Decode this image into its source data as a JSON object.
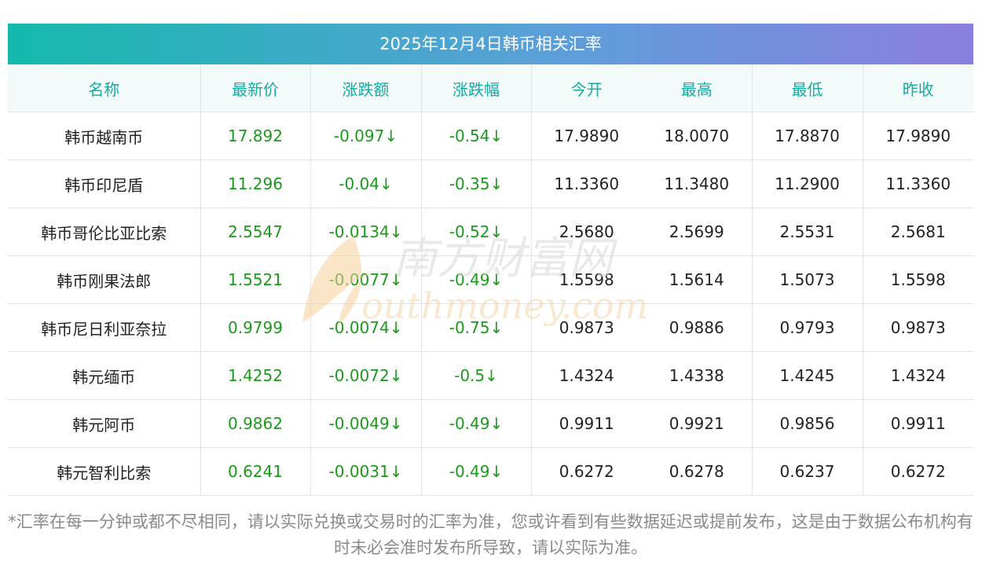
{
  "title": "2025年12月4日韩币相关汇率",
  "headers": [
    "名称",
    "最新价",
    "涨跌额",
    "涨跌幅",
    "今开",
    "最高",
    "最低",
    "昨收"
  ],
  "rows": [
    {
      "name": "韩币越南币",
      "latest": "17.892",
      "change": "-0.097↓",
      "pct": "-0.54↓",
      "open": "17.9890",
      "high": "18.0070",
      "low": "17.8870",
      "prev": "17.9890"
    },
    {
      "name": "韩币印尼盾",
      "latest": "11.296",
      "change": "-0.04↓",
      "pct": "-0.35↓",
      "open": "11.3360",
      "high": "11.3480",
      "low": "11.2900",
      "prev": "11.3360"
    },
    {
      "name": "韩币哥伦比亚比索",
      "latest": "2.5547",
      "change": "-0.0134↓",
      "pct": "-0.52↓",
      "open": "2.5680",
      "high": "2.5699",
      "low": "2.5531",
      "prev": "2.5681"
    },
    {
      "name": "韩币刚果法郎",
      "latest": "1.5521",
      "change": "-0.0077↓",
      "pct": "-0.49↓",
      "open": "1.5598",
      "high": "1.5614",
      "low": "1.5073",
      "prev": "1.5598"
    },
    {
      "name": "韩币尼日利亚奈拉",
      "latest": "0.9799",
      "change": "-0.0074↓",
      "pct": "-0.75↓",
      "open": "0.9873",
      "high": "0.9886",
      "low": "0.9793",
      "prev": "0.9873"
    },
    {
      "name": "韩元缅币",
      "latest": "1.4252",
      "change": "-0.0072↓",
      "pct": "-0.5↓",
      "open": "1.4324",
      "high": "1.4338",
      "low": "1.4245",
      "prev": "1.4324"
    },
    {
      "name": "韩元阿币",
      "latest": "0.9862",
      "change": "-0.0049↓",
      "pct": "-0.49↓",
      "open": "0.9911",
      "high": "0.9921",
      "low": "0.9856",
      "prev": "0.9911"
    },
    {
      "name": "韩元智利比索",
      "latest": "0.6241",
      "change": "-0.0031↓",
      "pct": "-0.49↓",
      "open": "0.6272",
      "high": "0.6278",
      "low": "0.6237",
      "prev": "0.6272"
    }
  ],
  "watermark": {
    "cn": "南方财富网",
    "en": "outhmoney.com"
  },
  "footnote": "*汇率在每一分钟或都不尽相同，请以实际兑换或交易时的汇率为准，您或许看到有些数据延迟或提前发布，这是由于数据公布机构有时未必会准时发布所导致，请以实际为准。",
  "colors": {
    "header_text": "#17a9a0",
    "positive_green": "#1a9a1a",
    "title_gradient_start": "#14b9ad",
    "title_gradient_end": "#8b7fe0"
  }
}
